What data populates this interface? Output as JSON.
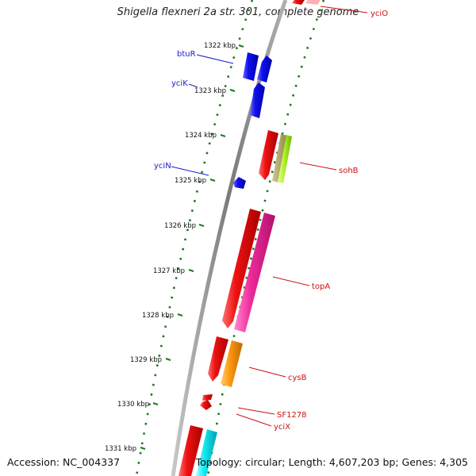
{
  "title": "Shigella flexneri 2a str. 301, complete genome",
  "footer": {
    "accession": "Accession: NC_004337",
    "topology": "Topology: circular; Length: 4,607,203 bp; Genes: 4,305"
  },
  "colors": {
    "backbone": "#888888",
    "tick": "#1a7a1a",
    "reverse_gene_label": "#1a1acc",
    "forward_gene_label": "#cc1111"
  },
  "ticks": [
    {
      "label": "1322 kbp"
    },
    {
      "label": "1323 kbp"
    },
    {
      "label": "1324 kbp"
    },
    {
      "label": "1325 kbp"
    },
    {
      "label": "1326 kbp"
    },
    {
      "label": "1327 kbp"
    },
    {
      "label": "1328 kbp"
    },
    {
      "label": "1329 kbp"
    },
    {
      "label": "1330 kbp"
    },
    {
      "label": "1331 kbp"
    }
  ],
  "gene_labels": {
    "btuR": "btuR",
    "yciK": "yciK",
    "yciN": "yciN",
    "yciO": "yciO",
    "sohB": "sohB",
    "topA": "topA",
    "cysB": "cysB",
    "SF1278": "SF1278",
    "yciX": "yciX"
  },
  "features": [
    {
      "name": "btuR",
      "strand": "reverse",
      "color": "#1010ee"
    },
    {
      "name": "yciK",
      "strand": "reverse",
      "color": "#1010ee"
    },
    {
      "name": "yciN",
      "strand": "reverse",
      "color": "#1010ee"
    },
    {
      "name": "yciO",
      "strand": "forward",
      "color": "#ee1111"
    },
    {
      "name": "sohB",
      "strand": "forward",
      "color": "#ee1111"
    },
    {
      "name": "topA",
      "strand": "forward",
      "color": "#ee1111"
    },
    {
      "name": "cysB",
      "strand": "forward",
      "color": "#ee1111"
    },
    {
      "name": "SF1278",
      "strand": "forward",
      "color": "#ee1111"
    },
    {
      "name": "yciX",
      "strand": "forward",
      "color": "#ee1111"
    }
  ]
}
